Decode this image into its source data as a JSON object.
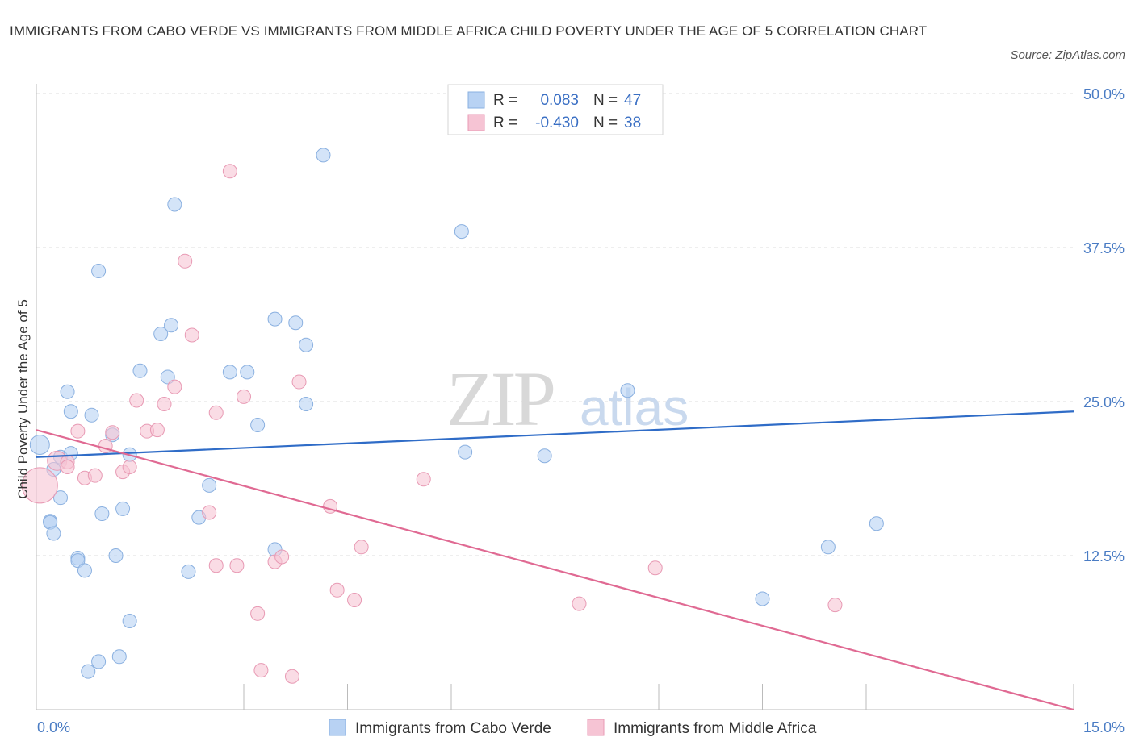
{
  "title": "IMMIGRANTS FROM CABO VERDE VS IMMIGRANTS FROM MIDDLE AFRICA CHILD POVERTY UNDER THE AGE OF 5 CORRELATION CHART",
  "source": "Source: ZipAtlas.com",
  "watermark": {
    "zip": "ZIP",
    "atlas": "atlas"
  },
  "colors": {
    "blue_fill": "#b8d2f3",
    "blue_stroke": "#8ab0e0",
    "blue_line": "#2f6cc7",
    "pink_fill": "#f6c4d4",
    "pink_stroke": "#e89ab4",
    "pink_line": "#e06a93",
    "value_text": "#3a6fc4",
    "grid": "#dddddd"
  },
  "legend": {
    "r_label": "R =",
    "n_label": "N =",
    "entries": [
      {
        "name": "Immigrants from Cabo Verde",
        "r": "0.083",
        "n": "47",
        "color": "blue"
      },
      {
        "name": "Immigrants from Middle Africa",
        "r": "-0.430",
        "n": "38",
        "color": "pink"
      }
    ]
  },
  "chart_data": {
    "type": "scatter",
    "title": "IMMIGRANTS FROM CABO VERDE VS IMMIGRANTS FROM MIDDLE AFRICA CHILD POVERTY UNDER THE AGE OF 5 CORRELATION CHART",
    "xlabel": "",
    "ylabel": "Child Poverty Under the Age of 5",
    "xlim": [
      0,
      15
    ],
    "ylim": [
      0,
      50
    ],
    "x_tick_labels": [
      "0.0%",
      "15.0%"
    ],
    "y_ticks": [
      12.5,
      25,
      37.5,
      50
    ],
    "y_tick_labels": [
      "12.5%",
      "25.0%",
      "37.5%",
      "50.0%"
    ],
    "x_minor_ticks": [
      1.5,
      3,
      4.5,
      6,
      7.5,
      9,
      10.5,
      12,
      13.5,
      15
    ],
    "grid": true,
    "legend_position": "top-center",
    "series": [
      {
        "name": "Immigrants from Cabo Verde",
        "color": "blue",
        "r": 0.083,
        "n": 47,
        "trend": {
          "x": [
            0,
            15
          ],
          "y": [
            20.5,
            24.2
          ]
        },
        "points": [
          {
            "x": 0.05,
            "y": 21.5,
            "big": 1
          },
          {
            "x": 0.25,
            "y": 19.5
          },
          {
            "x": 0.35,
            "y": 20.5
          },
          {
            "x": 0.5,
            "y": 20.8
          },
          {
            "x": 0.45,
            "y": 25.8
          },
          {
            "x": 0.5,
            "y": 24.2
          },
          {
            "x": 0.8,
            "y": 23.9
          },
          {
            "x": 0.9,
            "y": 35.6
          },
          {
            "x": 1.1,
            "y": 22.3
          },
          {
            "x": 1.35,
            "y": 20.7
          },
          {
            "x": 1.5,
            "y": 27.5
          },
          {
            "x": 1.8,
            "y": 30.5
          },
          {
            "x": 1.95,
            "y": 31.2
          },
          {
            "x": 1.9,
            "y": 27.0
          },
          {
            "x": 2.0,
            "y": 41.0
          },
          {
            "x": 2.8,
            "y": 27.4
          },
          {
            "x": 3.05,
            "y": 27.4
          },
          {
            "x": 3.2,
            "y": 23.1
          },
          {
            "x": 3.45,
            "y": 31.7
          },
          {
            "x": 3.75,
            "y": 31.4
          },
          {
            "x": 3.9,
            "y": 29.6
          },
          {
            "x": 3.9,
            "y": 24.8
          },
          {
            "x": 4.15,
            "y": 45.0
          },
          {
            "x": 0.35,
            "y": 17.2
          },
          {
            "x": 0.2,
            "y": 15.3
          },
          {
            "x": 0.2,
            "y": 15.2
          },
          {
            "x": 0.25,
            "y": 14.3
          },
          {
            "x": 0.6,
            "y": 12.3
          },
          {
            "x": 0.6,
            "y": 12.1
          },
          {
            "x": 0.7,
            "y": 11.3
          },
          {
            "x": 0.95,
            "y": 15.9
          },
          {
            "x": 1.15,
            "y": 12.5
          },
          {
            "x": 1.25,
            "y": 16.3
          },
          {
            "x": 1.35,
            "y": 7.2
          },
          {
            "x": 2.2,
            "y": 11.2
          },
          {
            "x": 2.35,
            "y": 15.6
          },
          {
            "x": 2.5,
            "y": 18.2
          },
          {
            "x": 3.45,
            "y": 13.0
          },
          {
            "x": 0.75,
            "y": 3.1
          },
          {
            "x": 0.9,
            "y": 3.9
          },
          {
            "x": 1.2,
            "y": 4.3
          },
          {
            "x": 6.15,
            "y": 38.8
          },
          {
            "x": 6.2,
            "y": 20.9
          },
          {
            "x": 7.35,
            "y": 20.6
          },
          {
            "x": 8.55,
            "y": 25.9
          },
          {
            "x": 10.5,
            "y": 9.0
          },
          {
            "x": 11.45,
            "y": 13.2
          },
          {
            "x": 12.15,
            "y": 15.1
          }
        ]
      },
      {
        "name": "Immigrants from Middle Africa",
        "color": "pink",
        "r": -0.43,
        "n": 38,
        "trend": {
          "x": [
            0,
            15
          ],
          "y": [
            22.7,
            0
          ]
        },
        "points": [
          {
            "x": 0.05,
            "y": 18.2,
            "big": 2
          },
          {
            "x": 0.3,
            "y": 20.2,
            "big": 1
          },
          {
            "x": 0.45,
            "y": 20.1
          },
          {
            "x": 0.45,
            "y": 19.7
          },
          {
            "x": 0.6,
            "y": 22.6
          },
          {
            "x": 0.7,
            "y": 18.8
          },
          {
            "x": 0.85,
            "y": 19.0
          },
          {
            "x": 1.0,
            "y": 21.4
          },
          {
            "x": 1.1,
            "y": 22.5
          },
          {
            "x": 1.25,
            "y": 19.3
          },
          {
            "x": 1.35,
            "y": 19.7
          },
          {
            "x": 1.45,
            "y": 25.1
          },
          {
            "x": 1.6,
            "y": 22.6
          },
          {
            "x": 1.75,
            "y": 22.7
          },
          {
            "x": 1.85,
            "y": 24.8
          },
          {
            "x": 2.0,
            "y": 26.2
          },
          {
            "x": 2.15,
            "y": 36.4
          },
          {
            "x": 2.25,
            "y": 30.4
          },
          {
            "x": 2.5,
            "y": 16.0
          },
          {
            "x": 2.6,
            "y": 11.7
          },
          {
            "x": 2.6,
            "y": 24.1
          },
          {
            "x": 2.8,
            "y": 43.7
          },
          {
            "x": 2.9,
            "y": 11.7
          },
          {
            "x": 3.0,
            "y": 25.4
          },
          {
            "x": 3.2,
            "y": 7.8
          },
          {
            "x": 3.25,
            "y": 3.2
          },
          {
            "x": 3.45,
            "y": 12.0
          },
          {
            "x": 3.55,
            "y": 12.4
          },
          {
            "x": 3.7,
            "y": 2.7
          },
          {
            "x": 3.8,
            "y": 26.6
          },
          {
            "x": 4.25,
            "y": 16.5
          },
          {
            "x": 4.35,
            "y": 9.7
          },
          {
            "x": 4.6,
            "y": 8.9
          },
          {
            "x": 4.7,
            "y": 13.2
          },
          {
            "x": 5.6,
            "y": 18.7
          },
          {
            "x": 7.85,
            "y": 8.6
          },
          {
            "x": 8.95,
            "y": 11.5
          },
          {
            "x": 11.55,
            "y": 8.5
          }
        ]
      }
    ]
  }
}
